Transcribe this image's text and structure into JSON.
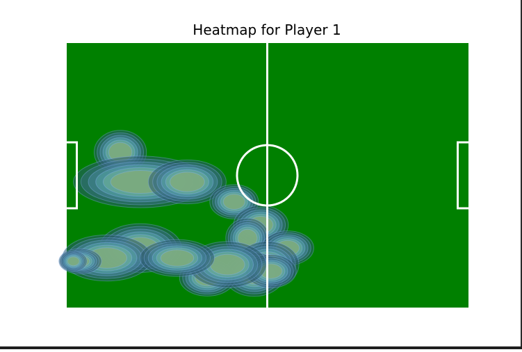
{
  "chart_data": {
    "type": "heatmap",
    "title": "Heatmap for Player 1",
    "pitch": {
      "x_range": [
        0,
        120
      ],
      "y_range": [
        0,
        80
      ],
      "colors": {
        "grass": "#008000",
        "lines": "#ffffff"
      }
    },
    "density_colormap": [
      "#2a5a6e",
      "#3a6f86",
      "#4a8aa0",
      "#5aa7aa",
      "#74b59a",
      "#94b26a"
    ],
    "density_alpha": 0.55,
    "hotspots": [
      {
        "x": 16,
        "y": 47,
        "sx": 2.6,
        "sy": 2.2,
        "w": 1.0
      },
      {
        "x": 22,
        "y": 38,
        "sx": 9,
        "sy": 3.5,
        "w": 0.55
      },
      {
        "x": 36,
        "y": 38,
        "sx": 4.2,
        "sy": 2.4,
        "w": 0.85
      },
      {
        "x": 50,
        "y": 32,
        "sx": 2.8,
        "sy": 2.0,
        "w": 0.75
      },
      {
        "x": 58,
        "y": 25,
        "sx": 2.8,
        "sy": 2.0,
        "w": 0.95
      },
      {
        "x": 54,
        "y": 21,
        "sx": 2.8,
        "sy": 2.6,
        "w": 0.6
      },
      {
        "x": 66,
        "y": 18,
        "sx": 3.0,
        "sy": 2.0,
        "w": 0.75
      },
      {
        "x": 60,
        "y": 13,
        "sx": 3.2,
        "sy": 2.4,
        "w": 0.95
      },
      {
        "x": 56,
        "y": 10,
        "sx": 3.0,
        "sy": 2.2,
        "w": 1.0
      },
      {
        "x": 61,
        "y": 11,
        "sx": 3.0,
        "sy": 2.0,
        "w": 0.7
      },
      {
        "x": 42,
        "y": 9,
        "sx": 3.0,
        "sy": 2.0,
        "w": 0.85
      },
      {
        "x": 48,
        "y": 13,
        "sx": 5.0,
        "sy": 3.0,
        "w": 0.6
      },
      {
        "x": 22,
        "y": 18,
        "sx": 4.0,
        "sy": 2.4,
        "w": 1.05
      },
      {
        "x": 12,
        "y": 15,
        "sx": 5.0,
        "sy": 2.6,
        "w": 0.8
      },
      {
        "x": 4,
        "y": 14,
        "sx": 3.0,
        "sy": 1.8,
        "w": 0.5
      },
      {
        "x": 33,
        "y": 15,
        "sx": 5.0,
        "sy": 2.5,
        "w": 0.55
      },
      {
        "x": 2,
        "y": 14,
        "sx": 2.0,
        "sy": 1.5,
        "w": 0.45
      }
    ]
  }
}
